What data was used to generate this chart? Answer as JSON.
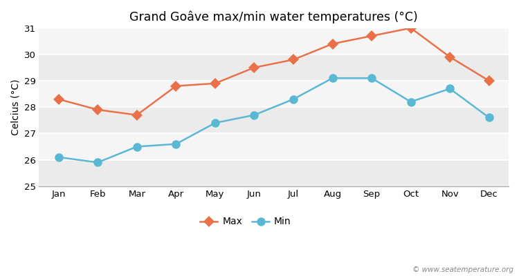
{
  "title": "Grand Goâve max/min water temperatures (°C)",
  "ylabel": "Celcius (°C)",
  "months": [
    "Jan",
    "Feb",
    "Mar",
    "Apr",
    "May",
    "Jun",
    "Jul",
    "Aug",
    "Sep",
    "Oct",
    "Nov",
    "Dec"
  ],
  "max_temps": [
    28.3,
    27.9,
    27.7,
    28.8,
    28.9,
    29.5,
    29.8,
    30.4,
    30.7,
    31.0,
    29.9,
    29.0
  ],
  "min_temps": [
    26.1,
    25.9,
    26.5,
    26.6,
    27.4,
    27.7,
    28.3,
    29.1,
    29.1,
    28.2,
    28.7,
    27.6
  ],
  "max_color": "#E8714A",
  "min_color": "#5BB8D4",
  "fig_bg_color": "#ffffff",
  "band_colors": [
    "#ebebeb",
    "#f5f5f5"
  ],
  "ylim": [
    25,
    31
  ],
  "yticks": [
    25,
    26,
    27,
    28,
    29,
    30,
    31
  ],
  "legend_labels": [
    "Max",
    "Min"
  ],
  "watermark": "© www.seatemperature.org",
  "max_marker": "D",
  "min_marker": "o",
  "max_marker_size": 8,
  "min_marker_size": 9,
  "line_width": 1.8
}
